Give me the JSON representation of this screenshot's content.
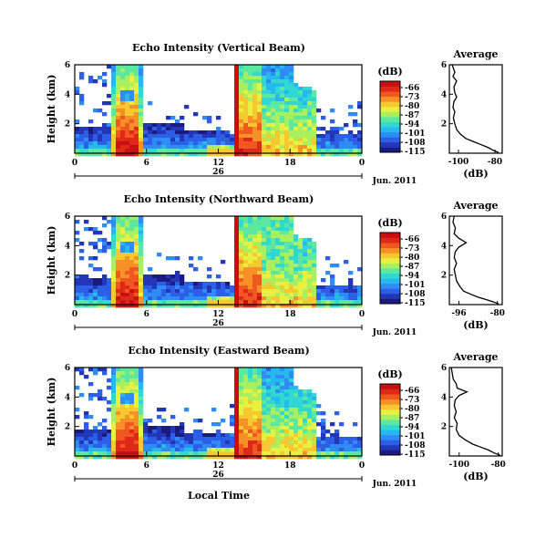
{
  "colors": {
    "scale": [
      "#1a1a80",
      "#2436b8",
      "#2c5ee8",
      "#2f8cf5",
      "#28b8f0",
      "#2fd8d0",
      "#5ce8a0",
      "#a8f060",
      "#e8f040",
      "#f8c830",
      "#f89028",
      "#f05820",
      "#e02818",
      "#c81010"
    ]
  },
  "colorbar": {
    "unit": "(dB)",
    "labels": [
      "-66",
      "-73",
      "-80",
      "-87",
      "-94",
      "-101",
      "-108",
      "-115"
    ]
  },
  "x_axis": {
    "ticks": [
      "0",
      "6",
      "12",
      "18",
      "0"
    ],
    "day_label": "26",
    "month_label": "Jun. 2011",
    "xlabel": "Local Time"
  },
  "y_axis": {
    "ylabel": "Height (km)",
    "ticks": [
      "6",
      "4",
      "2"
    ]
  },
  "chart_data": [
    {
      "type": "heatmap",
      "title": "Echo Intensity (Vertical Beam)",
      "x": [
        0,
        24
      ],
      "y": [
        0,
        6
      ],
      "zlim": [
        -115,
        -66
      ],
      "xlabel": "",
      "ylabel": "Height (km)"
    },
    {
      "type": "line",
      "title": "Average",
      "xlabel": "(dB)",
      "xticks": [
        "-100",
        "-80"
      ],
      "yticks": [
        "6",
        "4",
        "2"
      ],
      "xlim": [
        -105,
        -76
      ],
      "ylim": [
        0,
        6
      ],
      "points": [
        [
          -103.5,
          6.0
        ],
        [
          -102,
          5.5
        ],
        [
          -103,
          5.2
        ],
        [
          -101,
          4.9
        ],
        [
          -102.5,
          4.5
        ],
        [
          -102,
          4.1
        ],
        [
          -101,
          3.8
        ],
        [
          -102.5,
          3.5
        ],
        [
          -103,
          3.1
        ],
        [
          -102,
          2.8
        ],
        [
          -102.8,
          2.4
        ],
        [
          -102,
          2.0
        ],
        [
          -101,
          1.6
        ],
        [
          -99,
          1.3
        ],
        [
          -96,
          1.0
        ],
        [
          -92,
          0.8
        ],
        [
          -88,
          0.6
        ],
        [
          -84,
          0.4
        ],
        [
          -81,
          0.2
        ],
        [
          -78,
          0.05
        ]
      ]
    },
    {
      "type": "heatmap",
      "title": "Echo Intensity (Northward Beam)",
      "x": [
        0,
        24
      ],
      "y": [
        0,
        6
      ],
      "zlim": [
        -115,
        -66
      ],
      "xlabel": "",
      "ylabel": "Height (km)"
    },
    {
      "type": "line",
      "title": "Average",
      "xlabel": "(dB)",
      "xticks": [
        "-96",
        "-80"
      ],
      "yticks": [
        "6",
        "4",
        "2"
      ],
      "xlim": [
        -100,
        -78
      ],
      "ylim": [
        0,
        6
      ],
      "points": [
        [
          -98,
          6.0
        ],
        [
          -98.5,
          5.6
        ],
        [
          -97.5,
          5.2
        ],
        [
          -98,
          4.8
        ],
        [
          -96,
          4.5
        ],
        [
          -93,
          4.2
        ],
        [
          -96,
          3.9
        ],
        [
          -97.5,
          3.6
        ],
        [
          -98,
          3.2
        ],
        [
          -97,
          2.8
        ],
        [
          -98,
          2.4
        ],
        [
          -97.5,
          2.0
        ],
        [
          -97,
          1.6
        ],
        [
          -95.5,
          1.2
        ],
        [
          -94,
          0.9
        ],
        [
          -91,
          0.7
        ],
        [
          -88,
          0.5
        ],
        [
          -85,
          0.35
        ],
        [
          -82,
          0.2
        ],
        [
          -79.5,
          0.05
        ]
      ]
    },
    {
      "type": "heatmap",
      "title": "Echo Intensity (Eastward Beam)",
      "x": [
        0,
        24
      ],
      "y": [
        0,
        6
      ],
      "zlim": [
        -115,
        -66
      ],
      "xlabel": "Local Time",
      "ylabel": "Height (km)"
    },
    {
      "type": "line",
      "title": "Average",
      "xlabel": "(dB)",
      "xticks": [
        "-100",
        "-80"
      ],
      "yticks": [
        "6",
        "4",
        "2"
      ],
      "xlim": [
        -105,
        -78
      ],
      "ylim": [
        0,
        6
      ],
      "points": [
        [
          -104,
          6.0
        ],
        [
          -103.5,
          5.6
        ],
        [
          -103,
          5.2
        ],
        [
          -101.5,
          4.9
        ],
        [
          -101,
          4.6
        ],
        [
          -96,
          4.35
        ],
        [
          -100,
          4.1
        ],
        [
          -102,
          3.8
        ],
        [
          -102.5,
          3.4
        ],
        [
          -101.5,
          3.0
        ],
        [
          -102.5,
          2.6
        ],
        [
          -101,
          2.2
        ],
        [
          -101.5,
          1.8
        ],
        [
          -100,
          1.4
        ],
        [
          -97,
          1.1
        ],
        [
          -93,
          0.8
        ],
        [
          -89,
          0.6
        ],
        [
          -85,
          0.4
        ],
        [
          -82,
          0.2
        ],
        [
          -79,
          0.05
        ]
      ]
    }
  ]
}
